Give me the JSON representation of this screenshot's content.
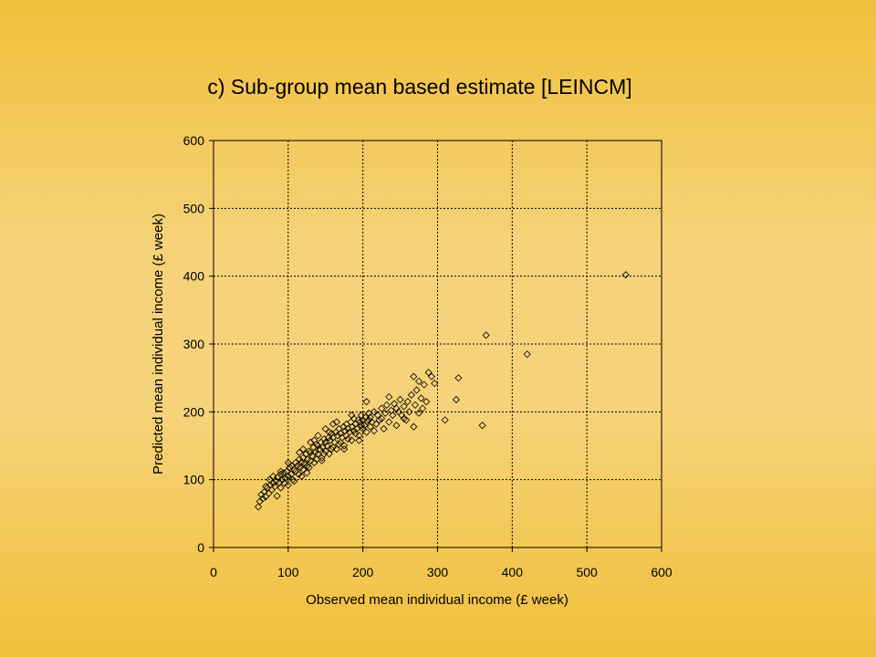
{
  "chart_data": {
    "type": "scatter",
    "title": "c) Sub-group mean based estimate [LEINCM]",
    "xlabel": "Observed mean individual income (£ week)",
    "ylabel": "Predicted mean individual income (£ week)",
    "xlim": [
      0,
      600
    ],
    "ylim": [
      0,
      600
    ],
    "xticks": [
      0,
      100,
      200,
      300,
      400,
      500,
      600
    ],
    "yticks": [
      0,
      100,
      200,
      300,
      400,
      500,
      600
    ],
    "grid": true,
    "marker": "diamond-open",
    "series": [
      {
        "points": [
          [
            60,
            60
          ],
          [
            62,
            68
          ],
          [
            64,
            78
          ],
          [
            66,
            72
          ],
          [
            68,
            82
          ],
          [
            70,
            75
          ],
          [
            72,
            88
          ],
          [
            74,
            80
          ],
          [
            75,
            100
          ],
          [
            76,
            92
          ],
          [
            78,
            85
          ],
          [
            80,
            95
          ],
          [
            82,
            90
          ],
          [
            84,
            98
          ],
          [
            85,
            76
          ],
          [
            86,
            104
          ],
          [
            88,
            96
          ],
          [
            90,
            88
          ],
          [
            90,
            108
          ],
          [
            92,
            100
          ],
          [
            94,
            110
          ],
          [
            95,
            95
          ],
          [
            96,
            102
          ],
          [
            98,
            112
          ],
          [
            100,
            105
          ],
          [
            100,
            92
          ],
          [
            102,
            118
          ],
          [
            104,
            108
          ],
          [
            105,
            120
          ],
          [
            106,
            100
          ],
          [
            108,
            115
          ],
          [
            110,
            112
          ],
          [
            110,
            125
          ],
          [
            112,
            120
          ],
          [
            114,
            108
          ],
          [
            115,
            130
          ],
          [
            116,
            118
          ],
          [
            118,
            126
          ],
          [
            120,
            115
          ],
          [
            120,
            132
          ],
          [
            122,
            124
          ],
          [
            124,
            138
          ],
          [
            125,
            120
          ],
          [
            126,
            130
          ],
          [
            128,
            142
          ],
          [
            130,
            128
          ],
          [
            130,
            140
          ],
          [
            132,
            135
          ],
          [
            134,
            148
          ],
          [
            135,
            125
          ],
          [
            136,
            140
          ],
          [
            138,
            152
          ],
          [
            140,
            138
          ],
          [
            140,
            150
          ],
          [
            142,
            145
          ],
          [
            144,
            155
          ],
          [
            145,
            132
          ],
          [
            146,
            148
          ],
          [
            148,
            160
          ],
          [
            150,
            142
          ],
          [
            150,
            155
          ],
          [
            152,
            150
          ],
          [
            154,
            162
          ],
          [
            155,
            138
          ],
          [
            156,
            158
          ],
          [
            158,
            168
          ],
          [
            160,
            148
          ],
          [
            160,
            162
          ],
          [
            162,
            155
          ],
          [
            164,
            170
          ],
          [
            165,
            145
          ],
          [
            166,
            165
          ],
          [
            168,
            175
          ],
          [
            170,
            155
          ],
          [
            170,
            168
          ],
          [
            172,
            162
          ],
          [
            174,
            178
          ],
          [
            175,
            150
          ],
          [
            176,
            172
          ],
          [
            178,
            182
          ],
          [
            180,
            160
          ],
          [
            180,
            175
          ],
          [
            182,
            170
          ],
          [
            184,
            185
          ],
          [
            185,
            158
          ],
          [
            186,
            178
          ],
          [
            188,
            190
          ],
          [
            190,
            168
          ],
          [
            190,
            182
          ],
          [
            192,
            175
          ],
          [
            194,
            188
          ],
          [
            195,
            165
          ],
          [
            196,
            185
          ],
          [
            198,
            195
          ],
          [
            200,
            175
          ],
          [
            200,
            188
          ],
          [
            202,
            180
          ],
          [
            204,
            192
          ],
          [
            205,
            170
          ],
          [
            206,
            186
          ],
          [
            208,
            198
          ],
          [
            210,
            178
          ],
          [
            210,
            192
          ],
          [
            212,
            185
          ],
          [
            215,
            200
          ],
          [
            218,
            182
          ],
          [
            220,
            195
          ],
          [
            222,
            188
          ],
          [
            225,
            205
          ],
          [
            228,
            175
          ],
          [
            230,
            198
          ],
          [
            232,
            210
          ],
          [
            235,
            185
          ],
          [
            238,
            202
          ],
          [
            240,
            195
          ],
          [
            242,
            212
          ],
          [
            245,
            180
          ],
          [
            248,
            200
          ],
          [
            250,
            218
          ],
          [
            252,
            195
          ],
          [
            255,
            208
          ],
          [
            258,
            188
          ],
          [
            260,
            215
          ],
          [
            262,
            200
          ],
          [
            265,
            225
          ],
          [
            268,
            178
          ],
          [
            270,
            210
          ],
          [
            272,
            232
          ],
          [
            275,
            198
          ],
          [
            278,
            220
          ],
          [
            280,
            205
          ],
          [
            282,
            240
          ],
          [
            285,
            215
          ],
          [
            288,
            258
          ],
          [
            292,
            252
          ],
          [
            296,
            242
          ],
          [
            275,
            245
          ],
          [
            268,
            252
          ],
          [
            310,
            188
          ],
          [
            325,
            218
          ],
          [
            328,
            250
          ],
          [
            360,
            180
          ],
          [
            365,
            313
          ],
          [
            420,
            285
          ],
          [
            552,
            402
          ],
          [
            115,
            140
          ],
          [
            125,
            110
          ],
          [
            135,
            158
          ],
          [
            145,
            128
          ],
          [
            155,
            170
          ],
          [
            165,
            185
          ],
          [
            175,
            145
          ],
          [
            185,
            195
          ],
          [
            195,
            158
          ],
          [
            205,
            215
          ],
          [
            215,
            172
          ],
          [
            225,
            190
          ],
          [
            235,
            222
          ],
          [
            245,
            205
          ],
          [
            255,
            190
          ],
          [
            100,
            125
          ],
          [
            90,
            112
          ],
          [
            80,
            105
          ],
          [
            70,
            90
          ],
          [
            108,
            98
          ],
          [
            118,
            105
          ],
          [
            128,
            118
          ],
          [
            138,
            130
          ],
          [
            148,
            138
          ],
          [
            158,
            145
          ],
          [
            168,
            152
          ],
          [
            178,
            165
          ],
          [
            188,
            172
          ],
          [
            198,
            180
          ],
          [
            208,
            188
          ],
          [
            160,
            182
          ],
          [
            150,
            175
          ],
          [
            140,
            165
          ],
          [
            130,
            155
          ],
          [
            120,
            145
          ]
        ]
      }
    ]
  }
}
